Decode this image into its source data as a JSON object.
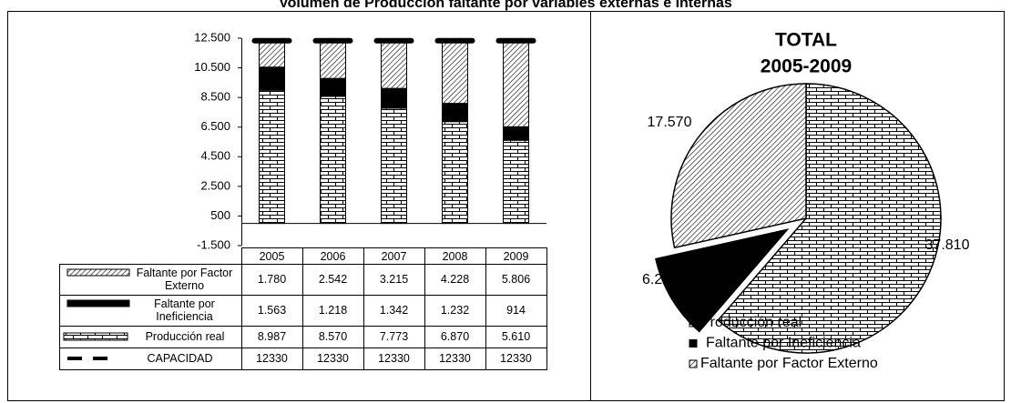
{
  "title": "Volumen de Producción faltante por variables externas e internas",
  "chart_data": [
    {
      "type": "bar",
      "stacked": true,
      "categories": [
        "2005",
        "2006",
        "2007",
        "2008",
        "2009"
      ],
      "ylim": [
        -1500,
        12500
      ],
      "yticks": [
        {
          "value": -1500,
          "label": "-1.500"
        },
        500,
        {
          "value": 2500,
          "label": "2.500"
        },
        {
          "value": 4500,
          "label": "4.500"
        },
        {
          "value": 6500,
          "label": "6.500"
        },
        {
          "value": 8500,
          "label": "8.500"
        },
        {
          "value": 10500,
          "label": "10.500"
        },
        {
          "value": 12500,
          "label": "12.500"
        }
      ],
      "series": [
        {
          "name": "Faltante por Factor Externo",
          "color": "#000000",
          "pattern": "hatch",
          "values": [
            1780,
            2542,
            3215,
            4228,
            5806
          ],
          "value_labels": [
            "1.780",
            "2.542",
            "3.215",
            "4.228",
            "5.806"
          ]
        },
        {
          "name": "Faltante por Ineficiencia",
          "color": "#000000",
          "pattern": "solid",
          "values": [
            1563,
            1218,
            1342,
            1232,
            914
          ],
          "value_labels": [
            "1.563",
            "1.218",
            "1.342",
            "1.232",
            "914"
          ]
        },
        {
          "name": "Producción real",
          "color": "#000000",
          "pattern": "brick",
          "values": [
            8987,
            8570,
            7773,
            6870,
            5610
          ],
          "value_labels": [
            "8.987",
            "8.570",
            "7.773",
            "6.870",
            "5.610"
          ]
        },
        {
          "name": "CAPACIDAD",
          "type": "line",
          "style": "dash",
          "color": "#000000",
          "values": [
            12330,
            12330,
            12330,
            12330,
            12330
          ]
        }
      ]
    },
    {
      "type": "pie",
      "title": "TOTAL",
      "subtitle": "2005-2009",
      "categories": [
        "Producción real",
        "Faltante por Ineficiencia",
        "Faltante por Factor Externo"
      ],
      "values": [
        37810,
        6270,
        17570
      ],
      "value_labels": [
        "37.810",
        "6.270",
        "17.570"
      ],
      "patterns": [
        "brick",
        "solid",
        "hatch"
      ],
      "color": "#000000",
      "exploded": [
        false,
        true,
        false
      ]
    }
  ]
}
